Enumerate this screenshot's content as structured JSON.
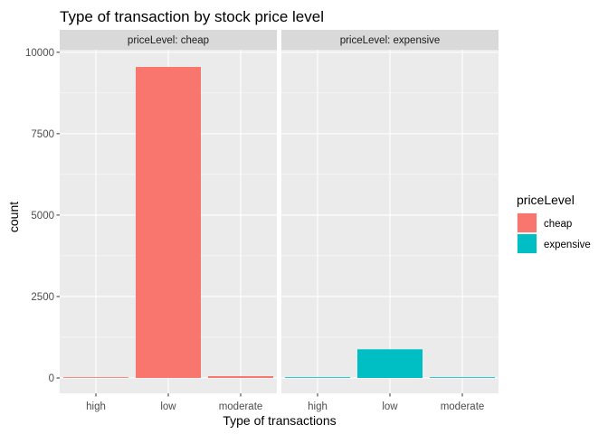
{
  "chart_data": {
    "type": "bar",
    "title": "Type of transaction by stock price level",
    "xlabel": "Type of transactions",
    "ylabel": "count",
    "categories": [
      "high",
      "low",
      "moderate"
    ],
    "ylim": [
      0,
      10500
    ],
    "yticks": [
      0,
      2500,
      5000,
      7500,
      10000
    ],
    "facet_prefix": "priceLevel: ",
    "facets": [
      {
        "name": "cheap",
        "values": [
          20,
          9550,
          55
        ]
      },
      {
        "name": "expensive",
        "values": [
          10,
          880,
          10
        ]
      }
    ],
    "legend": {
      "title": "priceLevel",
      "position": "right",
      "entries": [
        {
          "name": "cheap",
          "color": "#F8766D"
        },
        {
          "name": "expensive",
          "color": "#00BFC4"
        }
      ]
    },
    "colors": {
      "panel_bg": "#EBEBEB",
      "strip_bg": "#D9D9D9",
      "grid": "#FFFFFF"
    }
  }
}
